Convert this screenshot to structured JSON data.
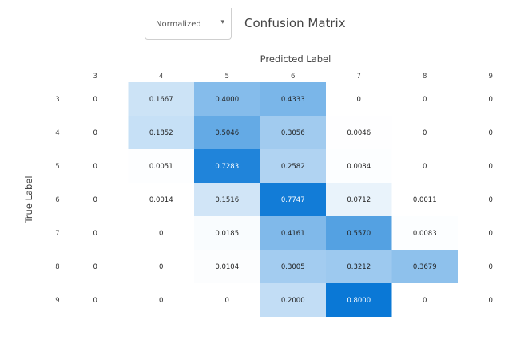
{
  "controls": {
    "mode_select": {
      "value": "Normalized"
    }
  },
  "title": "Confusion Matrix",
  "chart_data": {
    "type": "heatmap",
    "xlabel": "Predicted Label",
    "ylabel": "True Label",
    "x_categories": [
      "3",
      "4",
      "5",
      "6",
      "7",
      "8",
      "9"
    ],
    "y_categories": [
      "3",
      "4",
      "5",
      "6",
      "7",
      "8",
      "9"
    ],
    "values": [
      [
        0,
        0.1667,
        0.4,
        0.4333,
        0,
        0,
        0
      ],
      [
        0,
        0.1852,
        0.5046,
        0.3056,
        0.0046,
        0,
        0
      ],
      [
        0,
        0.0051,
        0.7283,
        0.2582,
        0.0084,
        0,
        0
      ],
      [
        0,
        0.0014,
        0.1516,
        0.7747,
        0.0712,
        0.0011,
        0
      ],
      [
        0,
        0,
        0.0185,
        0.4161,
        0.557,
        0.0083,
        0
      ],
      [
        0,
        0,
        0.0104,
        0.3005,
        0.3212,
        0.3679,
        0
      ],
      [
        0,
        0,
        0,
        0.2,
        0.8,
        0,
        0
      ]
    ],
    "labels": [
      [
        "0",
        "0.1667",
        "0.4000",
        "0.4333",
        "0",
        "0",
        "0"
      ],
      [
        "0",
        "0.1852",
        "0.5046",
        "0.3056",
        "0.0046",
        "0",
        "0"
      ],
      [
        "0",
        "0.0051",
        "0.7283",
        "0.2582",
        "0.0084",
        "0",
        "0"
      ],
      [
        "0",
        "0.0014",
        "0.1516",
        "0.7747",
        "0.0712",
        "0.0011",
        "0"
      ],
      [
        "0",
        "0",
        "0.0185",
        "0.4161",
        "0.5570",
        "0.0083",
        "0"
      ],
      [
        "0",
        "0",
        "0.0104",
        "0.3005",
        "0.3212",
        "0.3679",
        "0"
      ],
      [
        "0",
        "0",
        "0",
        "0.2000",
        "0.8000",
        "0",
        "0"
      ]
    ],
    "colorscale": [
      "#ffffff",
      "#0a78d6"
    ],
    "zmin": 0,
    "zmax": 0.8
  }
}
